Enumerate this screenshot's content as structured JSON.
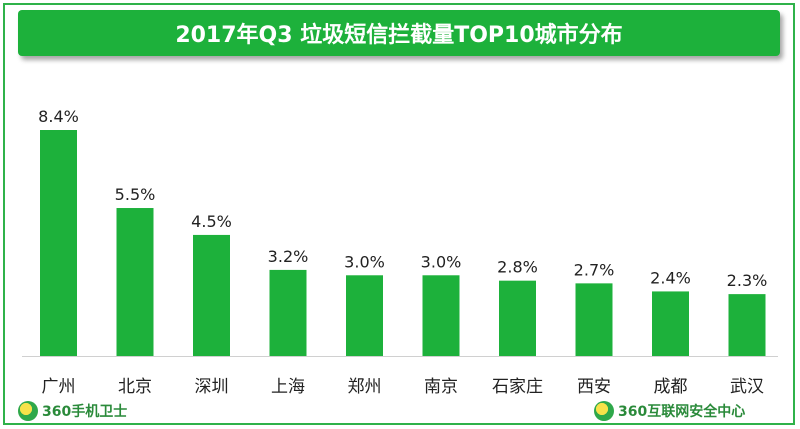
{
  "chart_data": {
    "type": "bar",
    "title": "2017年Q3 垃圾短信拦截量TOP10城市分布",
    "categories": [
      "广州",
      "北京",
      "深圳",
      "上海",
      "郑州",
      "南京",
      "石家庄",
      "西安",
      "成都",
      "武汉"
    ],
    "values": [
      8.4,
      5.5,
      4.5,
      3.2,
      3.0,
      3.0,
      2.8,
      2.7,
      2.4,
      2.3
    ],
    "value_labels": [
      "8.4%",
      "5.5%",
      "4.5%",
      "3.2%",
      "3.0%",
      "3.0%",
      "2.8%",
      "2.7%",
      "2.4%",
      "2.3%"
    ],
    "ylim": [
      0,
      8.4
    ],
    "grid": false,
    "bar_color": "#1db13b"
  },
  "branding": {
    "left": "360手机卫士",
    "right": "360互联网安全中心"
  },
  "colors": {
    "accent": "#1db13b",
    "border": "#2fb24a"
  }
}
